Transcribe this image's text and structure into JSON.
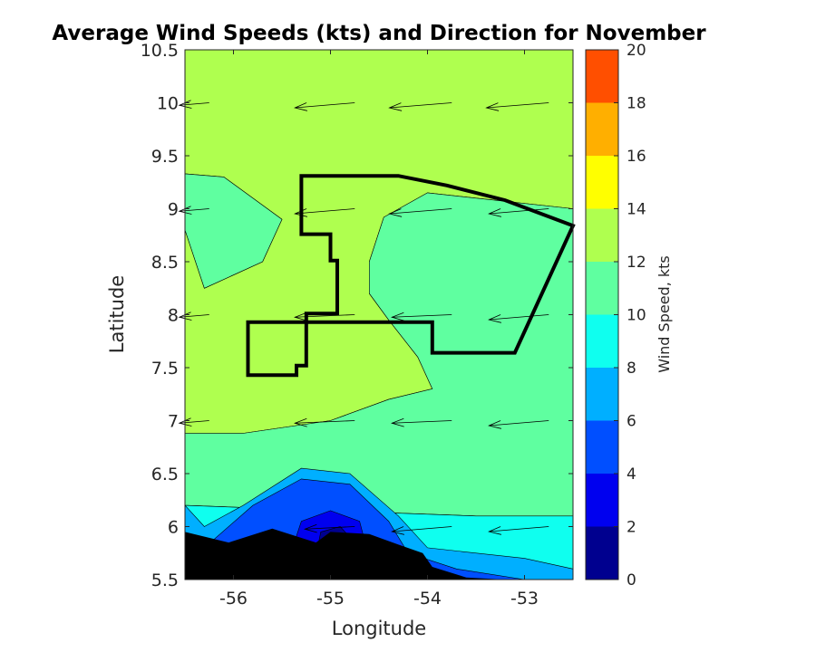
{
  "chart_data": {
    "type": "contourf",
    "title": "Average Wind Speeds (kts) and Direction for November",
    "xlabel": "Longitude",
    "ylabel": "Latitude",
    "xlim": [
      -56.5,
      -52.5
    ],
    "ylim": [
      5.5,
      10.5
    ],
    "xticks": [
      -56,
      -55,
      -54,
      -53
    ],
    "xtick_labels": [
      "-56",
      "-55",
      "-54",
      "-53"
    ],
    "yticks": [
      5.5,
      6,
      6.5,
      7,
      7.5,
      8,
      8.5,
      9,
      9.5,
      10,
      10.5
    ],
    "ytick_labels": [
      "5.5",
      "6",
      "6.5",
      "7",
      "7.5",
      "8",
      "8.5",
      "9",
      "9.5",
      "10",
      "10.5"
    ],
    "colorbar": {
      "label": "Wind Speed, kts",
      "levels": [
        0,
        2,
        4,
        6,
        8,
        10,
        12,
        14,
        16,
        18,
        20
      ],
      "tick_labels": [
        "0",
        "2",
        "4",
        "6",
        "8",
        "10",
        "12",
        "14",
        "16",
        "18",
        "20"
      ],
      "colors": [
        "#00008f",
        "#0000ef",
        "#004fff",
        "#00afff",
        "#0fffef",
        "#5fffa0",
        "#afff4f",
        "#ffff00",
        "#ffaf00",
        "#ff4f00"
      ]
    },
    "regions": [
      {
        "level": "12-14",
        "color": "#afff4f",
        "polygon": [
          [
            -56.5,
            10.5
          ],
          [
            -52.5,
            10.5
          ],
          [
            -52.5,
            9.0
          ],
          [
            -53.5,
            9.1
          ],
          [
            -54.0,
            9.15
          ],
          [
            -54.45,
            8.92
          ],
          [
            -54.6,
            8.5
          ],
          [
            -54.6,
            8.2
          ],
          [
            -54.4,
            7.95
          ],
          [
            -54.1,
            7.6
          ],
          [
            -53.95,
            7.3
          ],
          [
            -54.4,
            7.2
          ],
          [
            -55.0,
            7.0
          ],
          [
            -55.9,
            6.88
          ],
          [
            -56.5,
            6.88
          ],
          [
            -56.5,
            8.8
          ],
          [
            -56.3,
            8.25
          ],
          [
            -55.7,
            8.5
          ],
          [
            -55.5,
            8.9
          ],
          [
            -56.1,
            9.3
          ],
          [
            -56.5,
            9.33
          ]
        ]
      },
      {
        "level": "10-12",
        "color": "#5fffa0",
        "polygon": [
          [
            -56.5,
            9.33
          ],
          [
            -56.1,
            9.3
          ],
          [
            -55.5,
            8.9
          ],
          [
            -55.7,
            8.5
          ],
          [
            -56.3,
            8.25
          ],
          [
            -56.5,
            8.8
          ]
        ]
      },
      {
        "level": "10-12",
        "color": "#5fffa0",
        "polygon": [
          [
            -52.5,
            9.0
          ],
          [
            -53.5,
            9.1
          ],
          [
            -54.0,
            9.15
          ],
          [
            -54.45,
            8.92
          ],
          [
            -54.6,
            8.5
          ],
          [
            -54.6,
            8.2
          ],
          [
            -54.4,
            7.95
          ],
          [
            -54.1,
            7.6
          ],
          [
            -53.95,
            7.3
          ],
          [
            -54.4,
            7.2
          ],
          [
            -55.0,
            7.0
          ],
          [
            -55.9,
            6.88
          ],
          [
            -56.5,
            6.88
          ],
          [
            -56.5,
            6.2
          ],
          [
            -53.5,
            6.1
          ],
          [
            -52.5,
            6.1
          ]
        ]
      },
      {
        "level": "8-10",
        "color": "#0fffef",
        "polygon": [
          [
            -56.5,
            6.2
          ],
          [
            -53.5,
            6.1
          ],
          [
            -52.5,
            6.1
          ],
          [
            -52.5,
            5.5
          ],
          [
            -56.5,
            5.5
          ]
        ]
      },
      {
        "level": "6-8",
        "color": "#00afff",
        "polygon": [
          [
            -56.5,
            6.2
          ],
          [
            -56.3,
            6.0
          ],
          [
            -55.9,
            6.2
          ],
          [
            -55.3,
            6.55
          ],
          [
            -54.8,
            6.5
          ],
          [
            -54.3,
            6.1
          ],
          [
            -54.0,
            5.8
          ],
          [
            -53.0,
            5.7
          ],
          [
            -52.5,
            5.6
          ],
          [
            -52.5,
            5.5
          ],
          [
            -56.5,
            5.5
          ]
        ]
      },
      {
        "level": "4-6",
        "color": "#004fff",
        "polygon": [
          [
            -56.5,
            5.5
          ],
          [
            -56.3,
            5.8
          ],
          [
            -55.8,
            6.2
          ],
          [
            -55.3,
            6.45
          ],
          [
            -54.8,
            6.4
          ],
          [
            -54.4,
            6.05
          ],
          [
            -54.2,
            5.75
          ],
          [
            -53.7,
            5.6
          ],
          [
            -53.0,
            5.5
          ]
        ]
      },
      {
        "level": "2-4",
        "color": "#0000ef",
        "polygon": [
          [
            -55.5,
            5.5
          ],
          [
            -55.3,
            6.05
          ],
          [
            -55.0,
            6.15
          ],
          [
            -54.7,
            6.05
          ],
          [
            -54.6,
            5.7
          ],
          [
            -54.6,
            5.5
          ]
        ]
      },
      {
        "level": "0-2",
        "color": "#00008f",
        "polygon": [
          [
            -55.2,
            5.5
          ],
          [
            -55.1,
            5.95
          ],
          [
            -54.9,
            6.0
          ],
          [
            -54.75,
            5.85
          ],
          [
            -54.75,
            5.5
          ]
        ]
      }
    ],
    "land_mask": {
      "color": "#000000",
      "polygon": [
        [
          -56.5,
          5.95
        ],
        [
          -56.05,
          5.85
        ],
        [
          -55.6,
          5.98
        ],
        [
          -55.15,
          5.85
        ],
        [
          -55.0,
          5.95
        ],
        [
          -54.6,
          5.93
        ],
        [
          -54.3,
          5.83
        ],
        [
          -54.05,
          5.75
        ],
        [
          -53.95,
          5.62
        ],
        [
          -53.6,
          5.52
        ],
        [
          -53.2,
          5.5
        ],
        [
          -56.5,
          5.5
        ]
      ]
    },
    "boundary_polygon": [
      [
        -55.3,
        9.31
      ],
      [
        -54.3,
        9.31
      ],
      [
        -53.8,
        9.22
      ],
      [
        -53.2,
        9.08
      ],
      [
        -52.5,
        8.84
      ],
      [
        -53.1,
        7.64
      ],
      [
        -53.95,
        7.64
      ],
      [
        -53.95,
        7.93
      ],
      [
        -55.85,
        7.93
      ],
      [
        -55.85,
        7.43
      ],
      [
        -55.35,
        7.43
      ],
      [
        -55.35,
        7.52
      ],
      [
        -55.25,
        7.52
      ],
      [
        -55.25,
        8.01
      ],
      [
        -54.93,
        8.01
      ],
      [
        -54.93,
        8.51
      ],
      [
        -55.0,
        8.51
      ],
      [
        -55.0,
        8.76
      ],
      [
        -55.3,
        8.76
      ]
    ],
    "wind_vectors": [
      {
        "lon": -56.25,
        "lat": 10.0,
        "u": -0.6,
        "v": -0.05
      },
      {
        "lon": -54.75,
        "lat": 10.0,
        "u": -1.2,
        "v": -0.1
      },
      {
        "lon": -53.75,
        "lat": 10.0,
        "u": -1.25,
        "v": -0.1
      },
      {
        "lon": -52.75,
        "lat": 10.0,
        "u": -1.25,
        "v": -0.1
      },
      {
        "lon": -56.25,
        "lat": 9.0,
        "u": -0.6,
        "v": -0.05
      },
      {
        "lon": -54.75,
        "lat": 9.0,
        "u": -1.2,
        "v": -0.1
      },
      {
        "lon": -53.75,
        "lat": 9.0,
        "u": -1.25,
        "v": -0.1
      },
      {
        "lon": -52.75,
        "lat": 9.0,
        "u": -1.2,
        "v": -0.1
      },
      {
        "lon": -56.25,
        "lat": 8.0,
        "u": -0.6,
        "v": -0.05
      },
      {
        "lon": -54.75,
        "lat": 8.0,
        "u": -1.2,
        "v": -0.05
      },
      {
        "lon": -53.75,
        "lat": 8.0,
        "u": -1.2,
        "v": -0.05
      },
      {
        "lon": -52.75,
        "lat": 8.0,
        "u": -1.2,
        "v": -0.1
      },
      {
        "lon": -56.25,
        "lat": 7.0,
        "u": -0.6,
        "v": -0.05
      },
      {
        "lon": -54.75,
        "lat": 7.0,
        "u": -1.2,
        "v": -0.05
      },
      {
        "lon": -53.75,
        "lat": 7.0,
        "u": -1.2,
        "v": -0.05
      },
      {
        "lon": -52.75,
        "lat": 7.0,
        "u": -1.2,
        "v": -0.1
      },
      {
        "lon": -54.75,
        "lat": 6.0,
        "u": -1.0,
        "v": -0.05
      },
      {
        "lon": -53.75,
        "lat": 6.0,
        "u": -1.2,
        "v": -0.1
      },
      {
        "lon": -52.75,
        "lat": 6.0,
        "u": -1.2,
        "v": -0.1
      }
    ]
  }
}
